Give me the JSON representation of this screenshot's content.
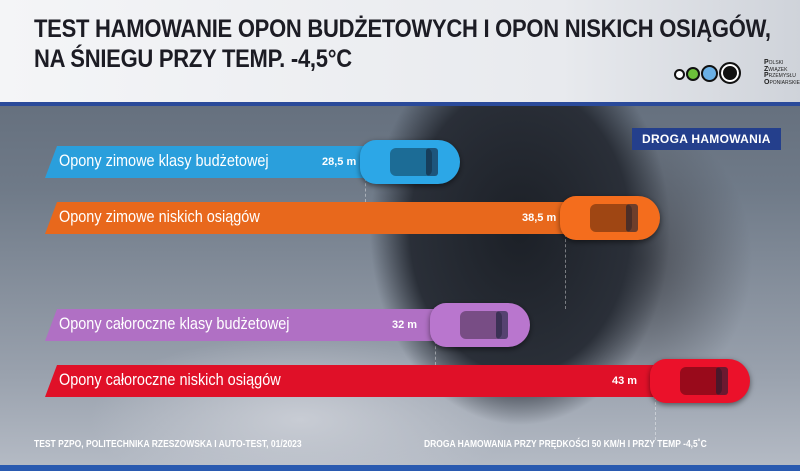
{
  "header": {
    "title_line1": "TEST HAMOWANIE OPON BUDŻETOWYCH I OPON NISKICH OSIĄGÓW,",
    "title_line2": "NA ŚNIEGU PRZY TEMP. -4,5°C",
    "logo_text": [
      "Polski",
      "Związek",
      "Przemysłu",
      "Oponiarskiego"
    ]
  },
  "chart_data": {
    "type": "bar",
    "orientation": "horizontal",
    "legend": "DROGA HAMOWANIA",
    "categories": [
      "Opony zimowe klasy budżetowej",
      "Opony zimowe niskich osiągów",
      "Opony całoroczne klasy budżetowej",
      "Opony całoroczne niskich osiągów"
    ],
    "values": [
      28.5,
      38.5,
      32,
      43
    ],
    "value_labels": [
      "28,5 m",
      "38,5 m",
      "32 m",
      "43 m"
    ],
    "unit": "m",
    "colors": [
      "#2a9fdc",
      "#e8681c",
      "#b070c4",
      "#e01028"
    ]
  },
  "footer": {
    "source": "TEST PZPO, POLITECHNIKA RZESZOWSKA I AUTO-TEST, 01/2023",
    "note": "DROGA HAMOWANIA PRZY PRĘDKOŚCI 50 KM/H I PRZY TEMP -4,5˚C"
  }
}
